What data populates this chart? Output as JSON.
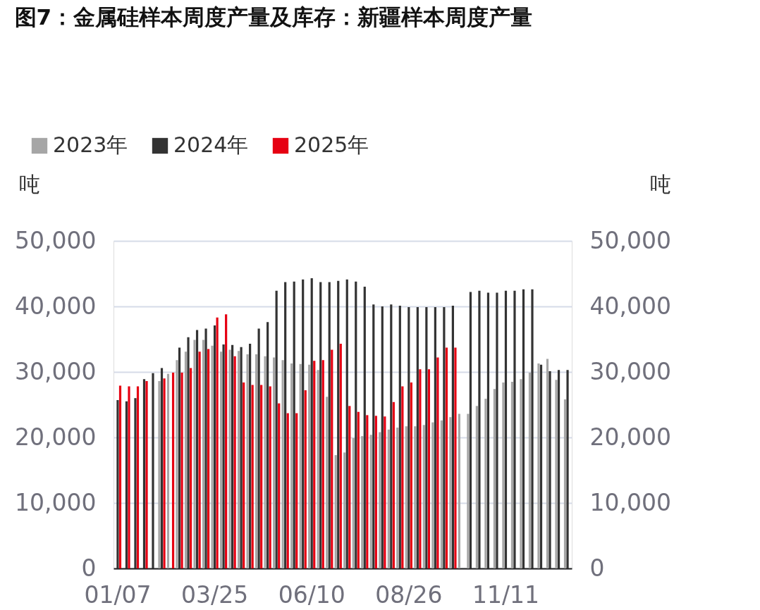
{
  "chart_data": {
    "type": "bar",
    "title": "图7：金属硅样本周度产量及库存：新疆样本周度产量",
    "ylabel": "吨",
    "y2label": "吨",
    "categories": [
      "01/07",
      null,
      null,
      null,
      null,
      null,
      null,
      null,
      null,
      null,
      null,
      "03/25",
      null,
      null,
      null,
      null,
      null,
      null,
      null,
      null,
      null,
      null,
      "06/10",
      null,
      null,
      null,
      null,
      null,
      null,
      null,
      null,
      null,
      null,
      "08/26",
      null,
      null,
      null,
      null,
      null,
      null,
      null,
      null,
      null,
      null,
      "11/11",
      null,
      null,
      null,
      null,
      null,
      null,
      null
    ],
    "series": [
      {
        "name": "2023年",
        "color": "#a6a6a6",
        "values": [
          null,
          null,
          null,
          null,
          null,
          28600,
          29700,
          31800,
          33100,
          34900,
          34900,
          34000,
          33100,
          33400,
          33200,
          32700,
          32700,
          32400,
          32200,
          31800,
          31300,
          31200,
          31100,
          30300,
          26200,
          17300,
          17700,
          19900,
          20200,
          20400,
          20800,
          21200,
          21500,
          21700,
          21700,
          21900,
          22300,
          22600,
          23100,
          23600,
          23600,
          24800,
          25900,
          27400,
          28400,
          28500,
          28900,
          29900,
          31300,
          32000,
          28800,
          25800
        ]
      },
      {
        "name": "2024年",
        "color": "#333333",
        "values": [
          25700,
          25500,
          26000,
          28900,
          29800,
          30600,
          null,
          33700,
          35300,
          36400,
          36600,
          37100,
          34200,
          34100,
          33800,
          34300,
          36600,
          37600,
          42400,
          43700,
          43800,
          44100,
          44300,
          43700,
          43700,
          43900,
          44100,
          43800,
          43000,
          40300,
          40000,
          40300,
          40100,
          39900,
          39900,
          39900,
          39900,
          39900,
          40100,
          null,
          42200,
          42400,
          42100,
          42100,
          42400,
          42400,
          42600,
          42600,
          31100,
          30100,
          30300,
          30300
        ]
      },
      {
        "name": "2025年",
        "color": "#e60012",
        "values": [
          27900,
          27800,
          27800,
          28600,
          null,
          29000,
          29900,
          29900,
          30600,
          33100,
          33500,
          38300,
          38800,
          32400,
          28400,
          28000,
          28000,
          27800,
          25200,
          23700,
          23700,
          27200,
          31700,
          31800,
          33400,
          34300,
          24800,
          23900,
          23400,
          23300,
          23200,
          25400,
          27800,
          28400,
          30400,
          30400,
          32200,
          33700,
          33700,
          null,
          null,
          null,
          null,
          null,
          null,
          null,
          null,
          null,
          null,
          null,
          null,
          null
        ]
      }
    ],
    "ylim": [
      0,
      50000
    ],
    "yticks": [
      0,
      {
        "value": 10000,
        "label": "10,000"
      },
      {
        "value": 20000,
        "label": "20,000"
      },
      {
        "value": 30000,
        "label": "30,000"
      },
      {
        "value": 40000,
        "label": "40,000"
      },
      {
        "value": 50000,
        "label": "50,000"
      }
    ],
    "y2lim": [
      0,
      50000
    ],
    "y2ticks": [
      0,
      {
        "value": 10000,
        "label": "10,000"
      },
      {
        "value": 20000,
        "label": "20,000"
      },
      {
        "value": 30000,
        "label": "30,000"
      },
      {
        "value": 40000,
        "label": "40,000"
      },
      {
        "value": 50000,
        "label": "50,000"
      }
    ],
    "grid": "y",
    "legend": "top left"
  }
}
